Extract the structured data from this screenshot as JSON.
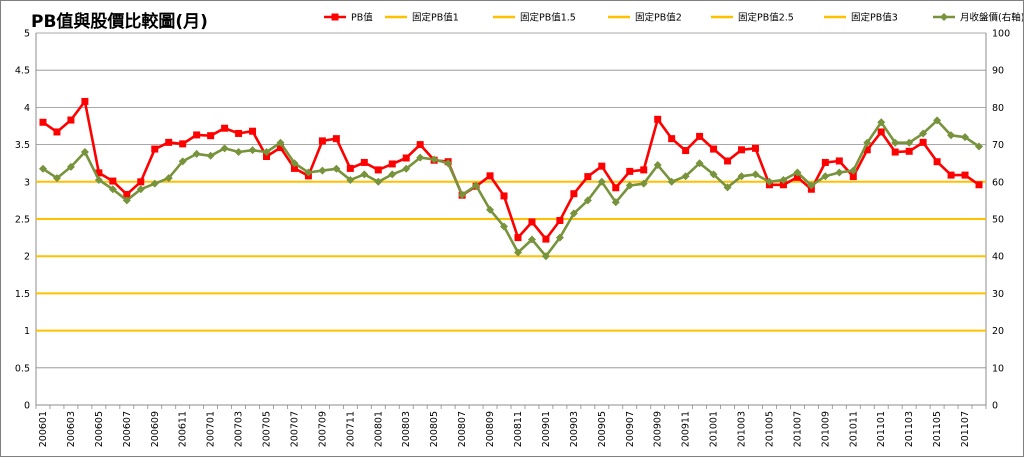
{
  "chart_data": {
    "type": "line",
    "title": "PB值與股價比較圖(月)",
    "months": [
      "200601",
      "200602",
      "200603",
      "200604",
      "200605",
      "200606",
      "200607",
      "200608",
      "200609",
      "200610",
      "200611",
      "200612",
      "200701",
      "200702",
      "200703",
      "200704",
      "200705",
      "200706",
      "200707",
      "200708",
      "200709",
      "200710",
      "200711",
      "200712",
      "200801",
      "200802",
      "200803",
      "200804",
      "200805",
      "200806",
      "200807",
      "200808",
      "200809",
      "200810",
      "200811",
      "200812",
      "200901",
      "200902",
      "200903",
      "200904",
      "200905",
      "200906",
      "200907",
      "200908",
      "200909",
      "200910",
      "200911",
      "200912",
      "201001",
      "201002",
      "201003",
      "201004",
      "201005",
      "201006",
      "201007",
      "201008",
      "201009",
      "201010",
      "201011",
      "201012",
      "201101",
      "201102",
      "201103",
      "201104",
      "201105",
      "201106",
      "201107",
      "201108"
    ],
    "x_tick_labels": [
      "200601",
      "200603",
      "200605",
      "200607",
      "200609",
      "200611",
      "200701",
      "200703",
      "200705",
      "200707",
      "200709",
      "200711",
      "200801",
      "200803",
      "200805",
      "200807",
      "200809",
      "200811",
      "200901",
      "200903",
      "200905",
      "200907",
      "200909",
      "200911",
      "201001",
      "201003",
      "201005",
      "201007",
      "201009",
      "201011",
      "201101",
      "201103",
      "201105",
      "201107"
    ],
    "y_left": {
      "min": 0,
      "max": 5,
      "step": 0.5,
      "tick_labels": [
        "0",
        "0.5",
        "1",
        "1.5",
        "2",
        "2.5",
        "3",
        "3.5",
        "4",
        "4.5",
        "5"
      ]
    },
    "y_right": {
      "min": 0,
      "max": 100,
      "step": 10,
      "tick_labels": [
        "0",
        "10",
        "20",
        "30",
        "40",
        "50",
        "60",
        "70",
        "80",
        "90",
        "100"
      ]
    },
    "grid": "horizontal",
    "legend_position": "top",
    "series": [
      {
        "name": "PB值",
        "axis": "left",
        "color": "#ff0000",
        "marker": "square",
        "values": [
          3.8,
          3.67,
          3.83,
          4.08,
          3.12,
          3.01,
          2.83,
          3.0,
          3.44,
          3.53,
          3.51,
          3.63,
          3.62,
          3.72,
          3.65,
          3.68,
          3.34,
          3.46,
          3.18,
          3.08,
          3.55,
          3.58,
          3.18,
          3.26,
          3.16,
          3.24,
          3.32,
          3.5,
          3.29,
          3.27,
          2.82,
          2.94,
          3.08,
          2.81,
          2.25,
          2.46,
          2.23,
          2.48,
          2.84,
          3.07,
          3.21,
          2.92,
          3.14,
          3.16,
          3.84,
          3.58,
          3.42,
          3.61,
          3.44,
          3.28,
          3.43,
          3.45,
          2.96,
          2.96,
          3.06,
          2.9,
          3.26,
          3.28,
          3.07,
          3.43,
          3.67,
          3.4,
          3.41,
          3.53,
          3.27,
          3.09,
          3.09,
          2.96
        ]
      },
      {
        "name": "固定PB值1",
        "axis": "left",
        "color": "#ffc000",
        "constant": 1
      },
      {
        "name": "固定PB值1.5",
        "axis": "left",
        "color": "#ffc000",
        "constant": 1.5
      },
      {
        "name": "固定PB值2",
        "axis": "left",
        "color": "#ffc000",
        "constant": 2
      },
      {
        "name": "固定PB值2.5",
        "axis": "left",
        "color": "#ffc000",
        "constant": 2.5
      },
      {
        "name": "固定PB值3",
        "axis": "left",
        "color": "#ffc000",
        "constant": 3
      },
      {
        "name": "月收盤價(右軸)",
        "axis": "right",
        "color": "#77933c",
        "marker": "diamond",
        "values": [
          63.5,
          61,
          64,
          68,
          60.5,
          58,
          55,
          58,
          59.5,
          61,
          65.5,
          67.5,
          67,
          69,
          68,
          68.5,
          68,
          70.5,
          65,
          62.5,
          63,
          63.5,
          60.5,
          62,
          60,
          62,
          63.5,
          66.5,
          66,
          65,
          56.5,
          59,
          52.5,
          48,
          41,
          44.5,
          40,
          45,
          51.5,
          55,
          60,
          54.5,
          59,
          59.5,
          64.5,
          60,
          61.5,
          65,
          62,
          58.5,
          61.5,
          62,
          60,
          60.5,
          62.5,
          59,
          61.5,
          62.5,
          63,
          70.5,
          76,
          70.5,
          70.5,
          73,
          76.5,
          72.5,
          72,
          69.5
        ]
      }
    ]
  }
}
